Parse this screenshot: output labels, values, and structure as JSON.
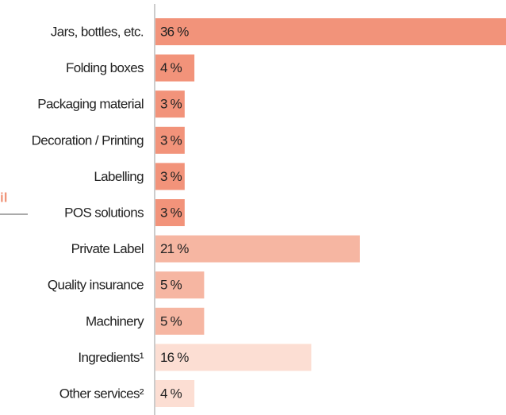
{
  "chart_data": {
    "type": "bar",
    "orientation": "horizontal",
    "annotation": "il",
    "categories": [
      "Jars, bottles, etc.",
      "Folding boxes",
      "Packaging material",
      "Decoration / Printing",
      "Labelling",
      "POS solutions",
      "Private Label",
      "Quality insurance",
      "Machinery",
      "Ingredients¹",
      "Other services²"
    ],
    "values": [
      36,
      4,
      3,
      3,
      3,
      3,
      21,
      5,
      5,
      16,
      4
    ],
    "value_labels": [
      "36 %",
      "4 %",
      "3 %",
      "3 %",
      "3 %",
      "3 %",
      "21 %",
      "5 %",
      "5 %",
      "16 %",
      "4 %"
    ],
    "colors": [
      "#f2937a",
      "#f2937a",
      "#f2937a",
      "#f2937a",
      "#f2937a",
      "#f2937a",
      "#f6b6a2",
      "#f6b6a2",
      "#f6b6a2",
      "#fcded3",
      "#fcded3"
    ]
  }
}
